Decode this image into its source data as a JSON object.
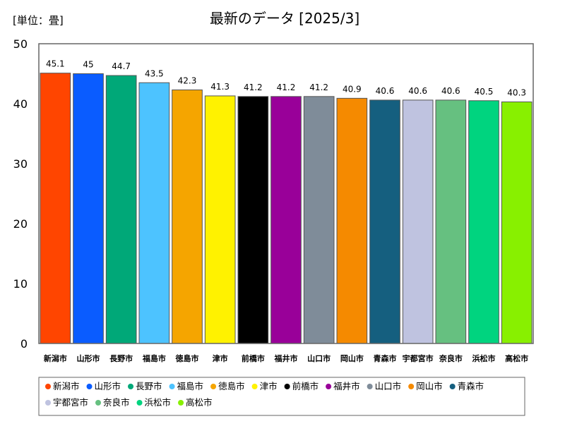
{
  "chart_data": {
    "type": "bar",
    "title": "最新のデータ [2025/3]",
    "unit_label": "[単位：畳]",
    "xlabel": "",
    "ylabel": "",
    "ylim": [
      0,
      50
    ],
    "yticks": [
      0,
      10,
      20,
      30,
      40,
      50
    ],
    "grid": false,
    "legend_position": "bottom",
    "categories": [
      "新潟市",
      "山形市",
      "長野市",
      "福島市",
      "徳島市",
      "津市",
      "前橋市",
      "福井市",
      "山口市",
      "岡山市",
      "青森市",
      "宇都宮市",
      "奈良市",
      "浜松市",
      "高松市"
    ],
    "values": [
      45.1,
      45,
      44.7,
      43.5,
      42.3,
      41.3,
      41.2,
      41.2,
      41.2,
      40.9,
      40.6,
      40.6,
      40.6,
      40.5,
      40.3
    ],
    "value_labels": [
      "45.1",
      "45",
      "44.7",
      "43.5",
      "42.3",
      "41.3",
      "41.2",
      "41.2",
      "41.2",
      "40.9",
      "40.6",
      "40.6",
      "40.6",
      "40.5",
      "40.3"
    ],
    "colors": [
      "#ff4500",
      "#0a5cff",
      "#00a878",
      "#4dc3ff",
      "#f5a500",
      "#fff200",
      "#000000",
      "#990099",
      "#7f8c99",
      "#f58a00",
      "#155f7f",
      "#bfc3e0",
      "#66c080",
      "#00d47f",
      "#88f000"
    ]
  }
}
